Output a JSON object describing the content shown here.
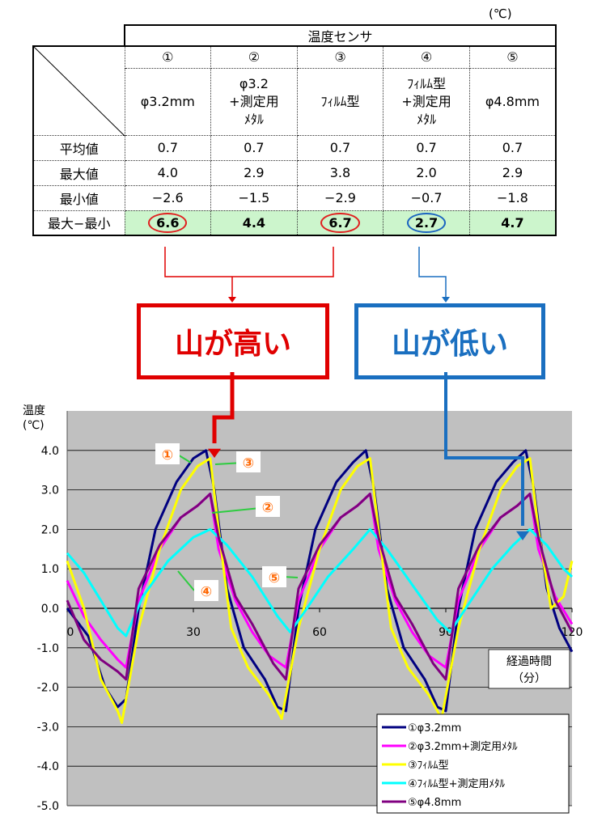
{
  "table": {
    "unit": "(℃)",
    "group_header": "温度センサ",
    "sensor_numbers": [
      "①",
      "②",
      "③",
      "④",
      "⑤"
    ],
    "sensor_names": [
      [
        "φ3.2mm"
      ],
      [
        "φ3.2",
        "+測定用",
        "ﾒﾀﾙ"
      ],
      [
        "ﾌｨﾙﾑ型"
      ],
      [
        "ﾌｨﾙﾑ型",
        "+測定用",
        "ﾒﾀﾙ"
      ],
      [
        "φ4.8mm"
      ]
    ],
    "rows": [
      {
        "label": "平均値",
        "values": [
          "0.7",
          "0.7",
          "0.7",
          "0.7",
          "0.7"
        ]
      },
      {
        "label": "最大値",
        "values": [
          "4.0",
          "2.9",
          "3.8",
          "2.0",
          "2.9"
        ]
      },
      {
        "label": "最小値",
        "values": [
          "−2.6",
          "−1.5",
          "−2.9",
          "−0.7",
          "−1.8"
        ]
      },
      {
        "label": "最大−最小",
        "values": [
          "6.6",
          "4.4",
          "6.7",
          "2.7",
          "4.7"
        ]
      }
    ]
  },
  "callouts": {
    "high": "山が高い",
    "low": "山が低い"
  },
  "colors": {
    "red": "#e00000",
    "blue": "#1a6fc0",
    "green_cell": "#ccf5cc",
    "plot_bg": "#c0c0c0"
  },
  "chart_data": {
    "type": "line",
    "ylabel_lines": [
      "温度",
      "(℃)"
    ],
    "xlabel_lines": [
      "経過時間",
      "（分）"
    ],
    "xlim": [
      0,
      120
    ],
    "ylim": [
      -5,
      5
    ],
    "x_ticks": [
      0,
      30,
      60,
      90,
      120
    ],
    "y_ticks": [
      4,
      3,
      2,
      1,
      0,
      -1,
      -2,
      -3,
      -4,
      -5
    ],
    "y_tick_labels": [
      "4.0",
      "3.0",
      "2.0",
      "1.0",
      "0.0",
      "-1.0",
      "-2.0",
      "-3.0",
      "-4.0",
      "-5.0"
    ],
    "grid": true,
    "legend_position": "bottom-right",
    "series": [
      {
        "name": "①φ3.2mm",
        "color": "#000080",
        "points": [
          [
            0,
            0
          ],
          [
            5,
            -0.7
          ],
          [
            9,
            -2
          ],
          [
            12,
            -2.5
          ],
          [
            14,
            -2.3
          ],
          [
            17,
            0
          ],
          [
            21,
            2
          ],
          [
            26,
            3.2
          ],
          [
            30,
            3.8
          ],
          [
            33,
            4.0
          ],
          [
            35,
            3.0
          ],
          [
            38,
            0.5
          ],
          [
            42,
            -1
          ],
          [
            47,
            -1.8
          ],
          [
            50,
            -2.5
          ],
          [
            52,
            -2.6
          ],
          [
            55,
            0
          ],
          [
            59,
            2
          ],
          [
            64,
            3.2
          ],
          [
            68,
            3.7
          ],
          [
            71,
            4.0
          ],
          [
            73,
            3.0
          ],
          [
            76,
            0.5
          ],
          [
            80,
            -1
          ],
          [
            85,
            -1.8
          ],
          [
            88,
            -2.5
          ],
          [
            90,
            -2.6
          ],
          [
            93,
            0
          ],
          [
            97,
            2
          ],
          [
            102,
            3.2
          ],
          [
            106,
            3.7
          ],
          [
            109,
            4.0
          ],
          [
            111,
            3.0
          ],
          [
            114,
            0.5
          ],
          [
            117,
            -0.5
          ],
          [
            120,
            -1.1
          ]
        ]
      },
      {
        "name": "②φ3.2mm+測定用ﾒﾀﾙ",
        "color": "#ff00ff",
        "points": [
          [
            0,
            0.7
          ],
          [
            4,
            -0.2
          ],
          [
            8,
            -0.8
          ],
          [
            12,
            -1.3
          ],
          [
            14,
            -1.5
          ],
          [
            17,
            0.2
          ],
          [
            22,
            1.5
          ],
          [
            27,
            2.3
          ],
          [
            31,
            2.6
          ],
          [
            34,
            2.9
          ],
          [
            36,
            1.5
          ],
          [
            40,
            0.2
          ],
          [
            44,
            -0.6
          ],
          [
            48,
            -1.2
          ],
          [
            52,
            -1.5
          ],
          [
            55,
            0.2
          ],
          [
            60,
            1.5
          ],
          [
            65,
            2.3
          ],
          [
            69,
            2.6
          ],
          [
            72,
            2.9
          ],
          [
            74,
            1.5
          ],
          [
            78,
            0.2
          ],
          [
            82,
            -0.6
          ],
          [
            86,
            -1.2
          ],
          [
            90,
            -1.5
          ],
          [
            93,
            0.2
          ],
          [
            98,
            1.5
          ],
          [
            103,
            2.3
          ],
          [
            107,
            2.6
          ],
          [
            110,
            2.9
          ],
          [
            112,
            1.5
          ],
          [
            116,
            0.3
          ],
          [
            120,
            -0.4
          ]
        ]
      },
      {
        "name": "③ﾌｨﾙﾑ型",
        "color": "#ffff00",
        "points": [
          [
            0,
            1.2
          ],
          [
            4,
            0
          ],
          [
            8,
            -1.8
          ],
          [
            12,
            -2.6
          ],
          [
            13,
            -2.9
          ],
          [
            17,
            -0.5
          ],
          [
            22,
            1.5
          ],
          [
            27,
            3
          ],
          [
            31,
            3.6
          ],
          [
            34,
            3.8
          ],
          [
            36,
            2
          ],
          [
            39,
            -0.5
          ],
          [
            43,
            -1.5
          ],
          [
            48,
            -2.2
          ],
          [
            51,
            -2.8
          ],
          [
            55,
            -0.5
          ],
          [
            60,
            1.5
          ],
          [
            65,
            3
          ],
          [
            69,
            3.6
          ],
          [
            72,
            3.8
          ],
          [
            74,
            2
          ],
          [
            77,
            -0.5
          ],
          [
            81,
            -1.5
          ],
          [
            86,
            -2.2
          ],
          [
            89,
            -2.8
          ],
          [
            93,
            -0.5
          ],
          [
            98,
            1.5
          ],
          [
            103,
            3
          ],
          [
            107,
            3.6
          ],
          [
            110,
            3.8
          ],
          [
            112,
            2
          ],
          [
            115,
            0
          ],
          [
            118,
            0.3
          ],
          [
            120,
            1.2
          ]
        ]
      },
      {
        "name": "④ﾌｨﾙﾑ型+測定用ﾒﾀﾙ",
        "color": "#00ffff",
        "points": [
          [
            0,
            1.4
          ],
          [
            4,
            0.9
          ],
          [
            8,
            0.2
          ],
          [
            12,
            -0.5
          ],
          [
            14,
            -0.7
          ],
          [
            18,
            0.3
          ],
          [
            24,
            1.2
          ],
          [
            30,
            1.8
          ],
          [
            34,
            2.0
          ],
          [
            38,
            1.6
          ],
          [
            44,
            0.8
          ],
          [
            50,
            -0.2
          ],
          [
            53,
            -0.6
          ],
          [
            57,
            0
          ],
          [
            62,
            0.8
          ],
          [
            68,
            1.5
          ],
          [
            72,
            2.0
          ],
          [
            76,
            1.5
          ],
          [
            82,
            0.6
          ],
          [
            88,
            -0.3
          ],
          [
            91,
            -0.6
          ],
          [
            96,
            0.2
          ],
          [
            101,
            1
          ],
          [
            106,
            1.6
          ],
          [
            110,
            2.0
          ],
          [
            114,
            1.6
          ],
          [
            118,
            1
          ],
          [
            120,
            0.8
          ]
        ]
      },
      {
        "name": "⑤φ4.8mm",
        "color": "#800080",
        "points": [
          [
            0,
            0.2
          ],
          [
            4,
            -0.8
          ],
          [
            8,
            -1.3
          ],
          [
            12,
            -1.6
          ],
          [
            14,
            -1.8
          ],
          [
            17,
            0.5
          ],
          [
            22,
            1.6
          ],
          [
            27,
            2.3
          ],
          [
            31,
            2.6
          ],
          [
            34,
            2.9
          ],
          [
            36,
            1.8
          ],
          [
            40,
            0.3
          ],
          [
            44,
            -0.4
          ],
          [
            49,
            -1.4
          ],
          [
            52,
            -1.8
          ],
          [
            55,
            0.5
          ],
          [
            60,
            1.6
          ],
          [
            65,
            2.3
          ],
          [
            69,
            2.6
          ],
          [
            72,
            2.9
          ],
          [
            74,
            1.8
          ],
          [
            78,
            0.3
          ],
          [
            82,
            -0.4
          ],
          [
            87,
            -1.4
          ],
          [
            90,
            -1.8
          ],
          [
            93,
            0.5
          ],
          [
            98,
            1.6
          ],
          [
            103,
            2.3
          ],
          [
            107,
            2.6
          ],
          [
            110,
            2.9
          ],
          [
            112,
            1.8
          ],
          [
            116,
            0.2
          ],
          [
            120,
            -0.6
          ]
        ]
      }
    ],
    "annotations": [
      "①",
      "②",
      "③",
      "④",
      "⑤"
    ]
  }
}
